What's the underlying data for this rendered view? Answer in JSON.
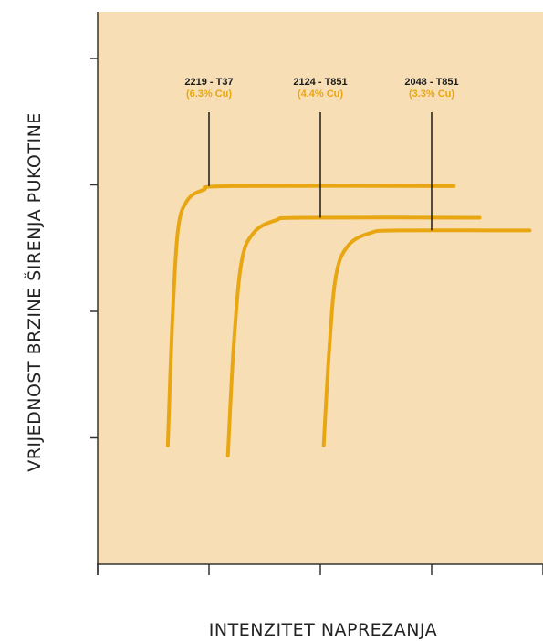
{
  "colors": {
    "background": "#f8deb4",
    "curve": "#e8a712",
    "axis": "#333333",
    "leader": "#1a1a1a"
  },
  "chart_data": {
    "type": "line",
    "title": "",
    "xlabel": "INTENZITET NAPREZANJA",
    "ylabel": "VRIJEDNOST BRZINE ŠIRENJA PUKOTINE",
    "x_ticks_labeled": false,
    "y_ticks_labeled": false,
    "xlim": [
      0,
      4
    ],
    "ylim": [
      0,
      4
    ],
    "x_tick_values": [
      0,
      1,
      2,
      3,
      4
    ],
    "y_tick_values": [
      1,
      2,
      3,
      4
    ],
    "grid": false,
    "series": [
      {
        "name": "2219 - T37",
        "annotation": "(6.3% Cu)",
        "label_anchor_x": 1.0,
        "points": [
          [
            0.63,
            0.94
          ],
          [
            0.67,
            1.9
          ],
          [
            0.72,
            2.63
          ],
          [
            0.8,
            2.87
          ],
          [
            0.95,
            2.96
          ],
          [
            1.2,
            2.99
          ],
          [
            3.2,
            2.99
          ]
        ]
      },
      {
        "name": "2124 - T851",
        "annotation": "(4.4% Cu)",
        "label_anchor_x": 2.0,
        "points": [
          [
            1.17,
            0.86
          ],
          [
            1.22,
            1.7
          ],
          [
            1.29,
            2.38
          ],
          [
            1.4,
            2.62
          ],
          [
            1.6,
            2.72
          ],
          [
            1.85,
            2.74
          ],
          [
            3.43,
            2.74
          ]
        ]
      },
      {
        "name": "2048 - T851",
        "annotation": "(3.3% Cu)",
        "label_anchor_x": 3.0,
        "points": [
          [
            2.03,
            0.94
          ],
          [
            2.08,
            1.7
          ],
          [
            2.14,
            2.28
          ],
          [
            2.25,
            2.52
          ],
          [
            2.45,
            2.62
          ],
          [
            2.7,
            2.64
          ],
          [
            3.88,
            2.64
          ]
        ]
      }
    ]
  }
}
